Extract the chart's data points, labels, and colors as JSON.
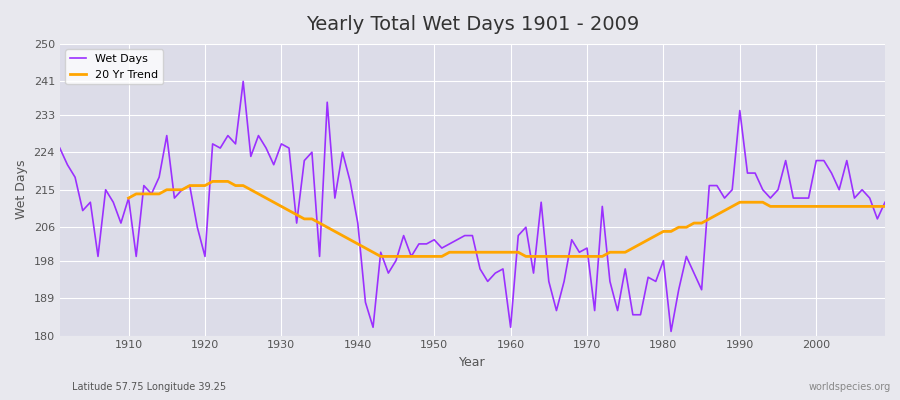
{
  "title": "Yearly Total Wet Days 1901 - 2009",
  "xlabel": "Year",
  "ylabel": "Wet Days",
  "subtitle": "Latitude 57.75 Longitude 39.25",
  "watermark": "worldspecies.org",
  "wet_days_color": "#9B30FF",
  "trend_color": "#FFA500",
  "bg_color": "#E8E8EE",
  "plot_bg_color": "#DCDCE8",
  "ylim": [
    180,
    250
  ],
  "yticks": [
    180,
    189,
    198,
    206,
    215,
    224,
    233,
    241,
    250
  ],
  "years": [
    1901,
    1902,
    1903,
    1904,
    1905,
    1906,
    1907,
    1908,
    1909,
    1910,
    1911,
    1912,
    1913,
    1914,
    1915,
    1916,
    1917,
    1918,
    1919,
    1920,
    1921,
    1922,
    1923,
    1924,
    1925,
    1926,
    1927,
    1928,
    1929,
    1930,
    1931,
    1932,
    1933,
    1934,
    1935,
    1936,
    1937,
    1938,
    1939,
    1940,
    1941,
    1942,
    1943,
    1944,
    1945,
    1946,
    1947,
    1948,
    1949,
    1950,
    1951,
    1952,
    1953,
    1954,
    1955,
    1956,
    1957,
    1958,
    1959,
    1960,
    1961,
    1962,
    1963,
    1964,
    1965,
    1966,
    1967,
    1968,
    1969,
    1970,
    1971,
    1972,
    1973,
    1974,
    1975,
    1976,
    1977,
    1978,
    1979,
    1980,
    1981,
    1982,
    1983,
    1984,
    1985,
    1986,
    1987,
    1988,
    1989,
    1990,
    1991,
    1992,
    1993,
    1994,
    1995,
    1996,
    1997,
    1998,
    1999,
    2000,
    2001,
    2002,
    2003,
    2004,
    2005,
    2006,
    2007,
    2008,
    2009
  ],
  "wet_days": [
    225,
    221,
    218,
    210,
    212,
    199,
    215,
    212,
    207,
    213,
    199,
    216,
    214,
    218,
    228,
    213,
    215,
    216,
    206,
    199,
    226,
    225,
    228,
    226,
    241,
    223,
    228,
    225,
    221,
    226,
    225,
    207,
    222,
    224,
    199,
    236,
    213,
    224,
    217,
    207,
    188,
    182,
    200,
    195,
    198,
    204,
    199,
    202,
    202,
    203,
    201,
    202,
    203,
    204,
    204,
    196,
    193,
    195,
    196,
    182,
    204,
    206,
    195,
    212,
    193,
    186,
    193,
    203,
    200,
    201,
    186,
    211,
    193,
    186,
    196,
    185,
    185,
    194,
    193,
    198,
    181,
    191,
    199,
    195,
    191,
    216,
    216,
    213,
    215,
    234,
    219,
    219,
    215,
    213,
    215,
    222,
    213,
    213,
    213,
    222,
    222,
    219,
    215,
    222,
    213,
    215,
    213,
    208,
    212
  ],
  "trend": [
    null,
    null,
    null,
    null,
    null,
    null,
    null,
    null,
    null,
    213,
    214,
    214,
    214,
    214,
    215,
    215,
    215,
    216,
    216,
    216,
    217,
    217,
    217,
    216,
    216,
    215,
    214,
    213,
    212,
    211,
    210,
    209,
    208,
    208,
    207,
    206,
    205,
    204,
    203,
    202,
    201,
    200,
    199,
    199,
    199,
    199,
    199,
    199,
    199,
    199,
    199,
    200,
    200,
    200,
    200,
    200,
    200,
    200,
    200,
    200,
    200,
    199,
    199,
    199,
    199,
    199,
    199,
    199,
    199,
    199,
    199,
    199,
    200,
    200,
    200,
    201,
    202,
    203,
    204,
    205,
    205,
    206,
    206,
    207,
    207,
    208,
    209,
    210,
    211,
    212,
    212,
    212,
    212,
    211,
    211,
    211,
    211,
    211,
    211,
    211,
    211,
    211,
    211,
    211,
    211,
    211,
    211,
    211,
    211
  ]
}
